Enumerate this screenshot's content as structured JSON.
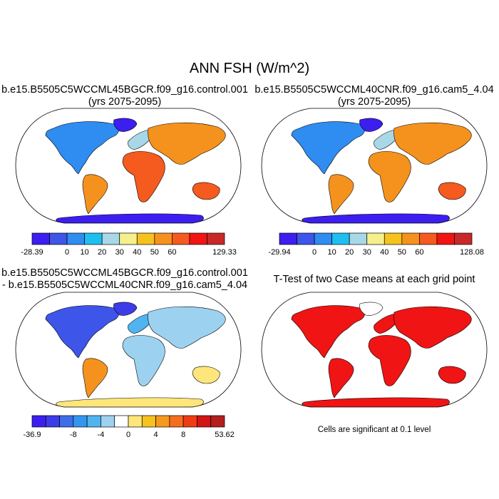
{
  "figure": {
    "title": "ANN FSH (W/m^2)"
  },
  "panels": [
    {
      "title_line1": "b.e15.B5505C5WCCML45BGCR.f09_g16.control.001",
      "title_line2": "(yrs 2075-2095)",
      "colorbar": {
        "min_label": "-28.39",
        "max_label": "129.33",
        "tick_labels": [
          "0",
          "10",
          "20",
          "30",
          "40",
          "50",
          "60"
        ],
        "colors": [
          "#3c1ef0",
          "#3d55e8",
          "#2f8cf0",
          "#1fbef0",
          "#a8d8e8",
          "#f5f08c",
          "#f5c21e",
          "#f5921e",
          "#f55a1e",
          "#f01414",
          "#c82828"
        ]
      }
    },
    {
      "title_line1": "b.e15.B5505C5WCCML40CNR.f09_g16.cam5_4.04",
      "title_line2": "(yrs 2075-2095)",
      "colorbar": {
        "min_label": "-29.94",
        "max_label": "128.08",
        "tick_labels": [
          "0",
          "10",
          "20",
          "30",
          "40",
          "50",
          "60"
        ],
        "colors": [
          "#3c1ef0",
          "#3d55e8",
          "#2f8cf0",
          "#1fbef0",
          "#a8d8e8",
          "#f5f08c",
          "#f5c21e",
          "#f5921e",
          "#f55a1e",
          "#f01414",
          "#c82828"
        ]
      }
    },
    {
      "title_line1": "b.e15.B5505C5WCCML45BGCR.f09_g16.control.001",
      "title_line2": "- b.e15.B5505C5WCCML40CNR.f09_g16.cam5_4.04",
      "colorbar": {
        "min_label": "-36.9",
        "max_label": "53.62",
        "tick_labels": [
          "-8",
          "-4",
          "0",
          "4",
          "8"
        ],
        "colors": [
          "#3c1ef0",
          "#3d3ce8",
          "#3d6ee8",
          "#3596f0",
          "#50b4f0",
          "#9cd2f0",
          "#ffffff",
          "#ffe67a",
          "#f5c21e",
          "#f59a1e",
          "#f56e1e",
          "#f03c14",
          "#d21414",
          "#b41e1e"
        ]
      }
    },
    {
      "title_line1": "T-Test of two Case means at each grid point",
      "note": "Cells are significant at 0.1 level"
    }
  ]
}
